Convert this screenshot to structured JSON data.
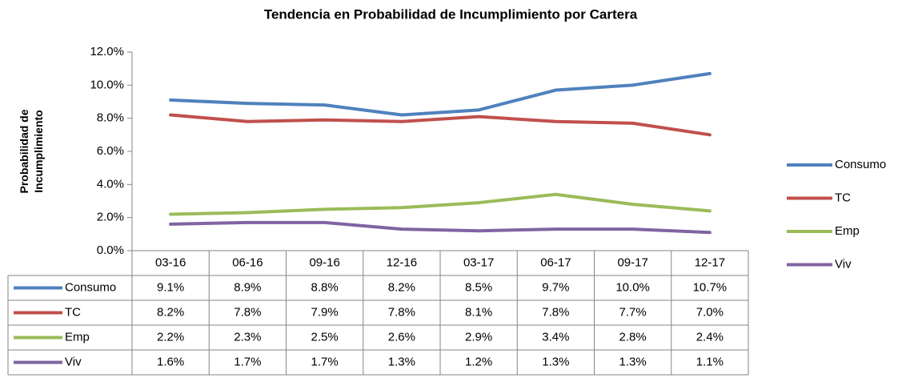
{
  "chart_data": {
    "type": "line",
    "title": "Tendencia en Probabilidad de Incumplimiento por Cartera",
    "ylabel": "Probabilidad de Incumplimiento",
    "categories": [
      "03-16",
      "06-16",
      "09-16",
      "12-16",
      "03-17",
      "06-17",
      "09-17",
      "12-17"
    ],
    "series": [
      {
        "name": "Consumo",
        "color": "#4f81bd",
        "values": [
          9.1,
          8.9,
          8.8,
          8.2,
          8.5,
          9.7,
          10.0,
          10.7
        ],
        "value_labels": [
          "9.1%",
          "8.9%",
          "8.8%",
          "8.2%",
          "8.5%",
          "9.7%",
          "10.0%",
          "10.7%"
        ]
      },
      {
        "name": "TC",
        "color": "#c0504d",
        "values": [
          8.2,
          7.8,
          7.9,
          7.8,
          8.1,
          7.8,
          7.7,
          7.0
        ],
        "value_labels": [
          "8.2%",
          "7.8%",
          "7.9%",
          "7.8%",
          "8.1%",
          "7.8%",
          "7.7%",
          "7.0%"
        ]
      },
      {
        "name": "Emp",
        "color": "#9bbb59",
        "values": [
          2.2,
          2.3,
          2.5,
          2.6,
          2.9,
          3.4,
          2.8,
          2.4
        ],
        "value_labels": [
          "2.2%",
          "2.3%",
          "2.5%",
          "2.6%",
          "2.9%",
          "3.4%",
          "2.8%",
          "2.4%"
        ]
      },
      {
        "name": "Viv",
        "color": "#8064a2",
        "values": [
          1.6,
          1.7,
          1.7,
          1.3,
          1.2,
          1.3,
          1.3,
          1.1
        ],
        "value_labels": [
          "1.6%",
          "1.7%",
          "1.7%",
          "1.3%",
          "1.2%",
          "1.3%",
          "1.3%",
          "1.1%"
        ]
      }
    ],
    "ylim": [
      0,
      12
    ],
    "yticks": [
      {
        "value": 0,
        "label": "0.0%"
      },
      {
        "value": 2,
        "label": "2.0%"
      },
      {
        "value": 4,
        "label": "4.0%"
      },
      {
        "value": 6,
        "label": "6.0%"
      },
      {
        "value": 8,
        "label": "8.0%"
      },
      {
        "value": 10,
        "label": "10.0%"
      },
      {
        "value": 12,
        "label": "12.0%"
      }
    ],
    "grid": false,
    "legend": "right"
  }
}
